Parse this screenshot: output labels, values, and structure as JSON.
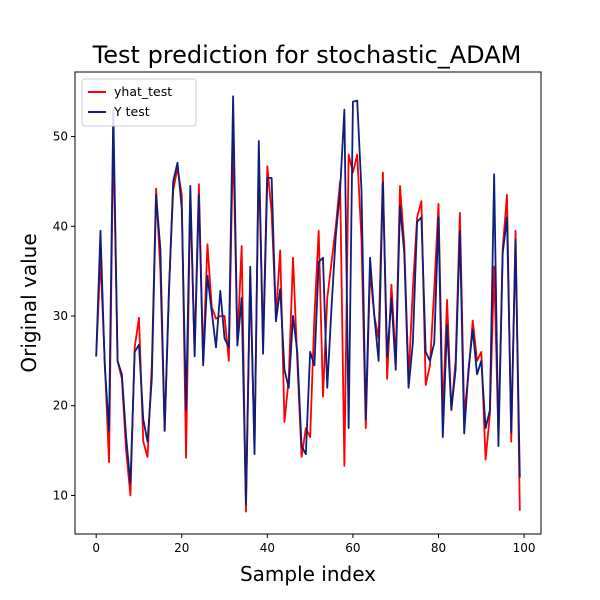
{
  "chart_data": {
    "type": "line",
    "title": "Test prediction for stochastic_ADAM",
    "xlabel": "Sample index",
    "ylabel": "Original value",
    "xlim": [
      -4.95,
      103.95
    ],
    "ylim": [
      5.7,
      57.2
    ],
    "xticks": [
      0,
      20,
      40,
      60,
      80,
      100
    ],
    "yticks": [
      10,
      20,
      30,
      40,
      50
    ],
    "legend_position": "top-left",
    "grid": false,
    "series": [
      {
        "name": "yhat_test",
        "color": "#ff0000",
        "x": [
          0,
          1,
          2,
          3,
          4,
          5,
          6,
          7,
          8,
          9,
          10,
          11,
          12,
          13,
          14,
          15,
          16,
          17,
          18,
          19,
          20,
          21,
          22,
          23,
          24,
          25,
          26,
          27,
          28,
          29,
          30,
          31,
          32,
          33,
          34,
          35,
          36,
          37,
          38,
          39,
          40,
          41,
          42,
          43,
          44,
          45,
          46,
          47,
          48,
          49,
          50,
          51,
          52,
          53,
          54,
          55,
          56,
          57,
          58,
          59,
          60,
          61,
          62,
          63,
          64,
          65,
          66,
          67,
          68,
          69,
          70,
          71,
          72,
          73,
          74,
          75,
          76,
          77,
          78,
          79,
          80,
          81,
          82,
          83,
          84,
          85,
          86,
          87,
          88,
          89,
          90,
          91,
          92,
          93,
          94,
          95,
          96,
          97,
          98,
          99
        ],
        "values": [
          25.5,
          36.5,
          25.0,
          13.7,
          50.5,
          25.0,
          23.0,
          15.0,
          10.0,
          26.5,
          29.8,
          16.0,
          14.3,
          24.5,
          44.2,
          35.0,
          17.2,
          33.0,
          44.0,
          46.5,
          43.5,
          14.2,
          43.5,
          26.0,
          44.7,
          25.0,
          38.0,
          31.0,
          29.7,
          30.0,
          30.0,
          25.0,
          50.0,
          27.0,
          37.8,
          8.2,
          34.5,
          15.0,
          47.5,
          27.0,
          46.7,
          41.5,
          30.0,
          37.3,
          18.2,
          23.0,
          36.5,
          25.0,
          14.3,
          17.5,
          16.5,
          30.0,
          39.5,
          21.0,
          32.0,
          36.0,
          40.0,
          45.0,
          13.3,
          48.0,
          46.0,
          48.0,
          38.5,
          17.5,
          35.0,
          30.0,
          27.5,
          46.0,
          23.0,
          33.5,
          25.0,
          44.5,
          38.0,
          23.0,
          33.0,
          41.0,
          42.8,
          22.3,
          24.5,
          33.0,
          42.5,
          19.0,
          31.8,
          19.5,
          25.0,
          41.5,
          19.0,
          23.5,
          29.5,
          25.0,
          26.0,
          14.0,
          19.0,
          35.5,
          16.5,
          37.5,
          43.5,
          16.0,
          39.5,
          8.3
        ]
      },
      {
        "name": "Y test",
        "color": "#0d1f7a",
        "x": [
          0,
          1,
          2,
          3,
          4,
          5,
          6,
          7,
          8,
          9,
          10,
          11,
          12,
          13,
          14,
          15,
          16,
          17,
          18,
          19,
          20,
          21,
          22,
          23,
          24,
          25,
          26,
          27,
          28,
          29,
          30,
          31,
          32,
          33,
          34,
          35,
          36,
          37,
          38,
          39,
          40,
          41,
          42,
          43,
          44,
          45,
          46,
          47,
          48,
          49,
          50,
          51,
          52,
          53,
          54,
          55,
          56,
          57,
          58,
          59,
          60,
          61,
          62,
          63,
          64,
          65,
          66,
          67,
          68,
          69,
          70,
          71,
          72,
          73,
          74,
          75,
          76,
          77,
          78,
          79,
          80,
          81,
          82,
          83,
          84,
          85,
          86,
          87,
          88,
          89,
          90,
          91,
          92,
          93,
          94,
          95,
          96,
          97,
          98,
          99
        ],
        "values": [
          25.5,
          39.5,
          24.5,
          17.2,
          53.0,
          25.0,
          23.5,
          16.5,
          11.3,
          26.0,
          26.8,
          18.5,
          16.0,
          23.0,
          43.5,
          37.5,
          17.2,
          32.5,
          45.0,
          47.1,
          42.0,
          19.5,
          44.5,
          25.5,
          43.5,
          24.5,
          34.5,
          30.5,
          26.5,
          32.8,
          27.5,
          26.5,
          54.5,
          26.7,
          32.0,
          9.0,
          35.5,
          14.6,
          49.5,
          25.8,
          45.4,
          45.4,
          29.4,
          33.0,
          24.0,
          22.0,
          30.0,
          26.0,
          15.5,
          14.6,
          26.0,
          24.5,
          36.0,
          36.5,
          22.0,
          31.0,
          39.0,
          44.0,
          53.0,
          17.5,
          53.9,
          54.0,
          44.0,
          18.5,
          36.5,
          30.0,
          25.0,
          44.9,
          25.5,
          32.0,
          24.0,
          42.3,
          37.0,
          22.0,
          27.0,
          40.5,
          41.0,
          26.0,
          25.0,
          27.0,
          41.0,
          16.5,
          29.0,
          19.6,
          24.0,
          39.5,
          16.9,
          24.0,
          28.5,
          23.5,
          25.0,
          17.5,
          19.5,
          45.8,
          15.5,
          37.0,
          41.0,
          17.0,
          38.5,
          12.0
        ]
      }
    ]
  }
}
